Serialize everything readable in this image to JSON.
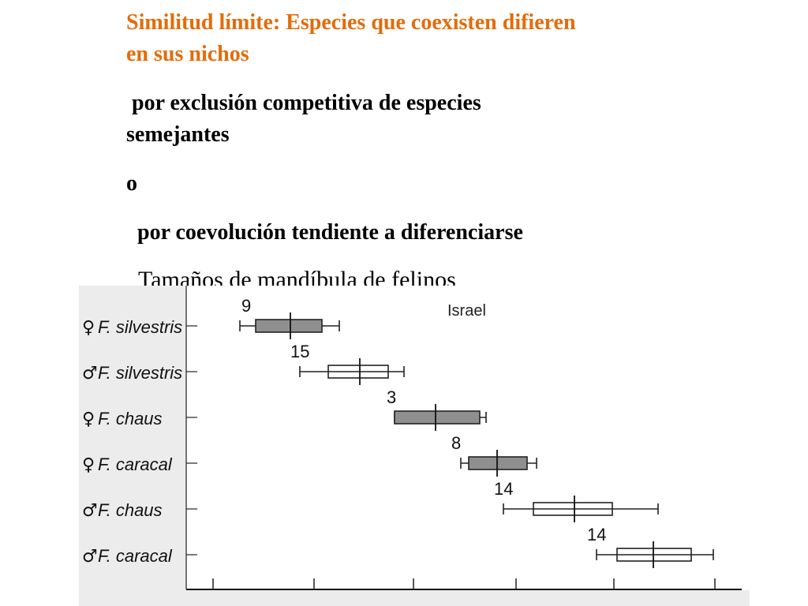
{
  "slide": {
    "heading_line1": "Similitud límite: Especies que coexisten difieren",
    "heading_line2": "en sus nichos",
    "reason1_line1": " por exclusión competitiva de especies",
    "reason1_line2": "semejantes",
    "connector": "o",
    "reason2": "  por coevolución tendiente a diferenciarse",
    "figure_caption": " Tamaños de mandíbula de felinos"
  },
  "colors": {
    "heading": "#e46c0a",
    "box_filled": "#8f8f8f",
    "box_open": "#ffffff",
    "panel_bg": "#ececec"
  },
  "chart_data": {
    "type": "box",
    "title": "Israel",
    "xlabel": "",
    "ylabel": "",
    "grid": false,
    "legend": "none",
    "series": [
      {
        "sex_symbol": "♀",
        "name": "F. silvestris",
        "n": "9",
        "fill": "filled",
        "whisker_low": 304,
        "box_low": 324,
        "median": 368,
        "box_high": 408,
        "whisker_high": 430
      },
      {
        "sex_symbol": "♂",
        "name": "F. silvestris",
        "n": "15",
        "fill": "open",
        "whisker_low": 380,
        "box_low": 416,
        "median": 456,
        "box_high": 492,
        "whisker_high": 512
      },
      {
        "sex_symbol": "♀",
        "name": "F. chaus",
        "n": "3",
        "fill": "filled",
        "whisker_low": 500,
        "box_low": 500,
        "median": 552,
        "box_high": 608,
        "whisker_high": 616
      },
      {
        "sex_symbol": "♀",
        "name": "F. caracal",
        "n": "8",
        "fill": "filled",
        "whisker_low": 584,
        "box_low": 594,
        "median": 630,
        "box_high": 668,
        "whisker_high": 680
      },
      {
        "sex_symbol": "♂",
        "name": "F. chaus",
        "n": "14",
        "fill": "open",
        "whisker_low": 638,
        "box_low": 676,
        "median": 728,
        "box_high": 776,
        "whisker_high": 834
      },
      {
        "sex_symbol": "♂",
        "name": "F. caracal",
        "n": "14",
        "fill": "open",
        "whisker_low": 756,
        "box_low": 782,
        "median": 828,
        "box_high": 876,
        "whisker_high": 904
      }
    ],
    "x_ticks": [
      270,
      398,
      524,
      654,
      778,
      906
    ],
    "xlim": [
      236,
      940
    ]
  }
}
